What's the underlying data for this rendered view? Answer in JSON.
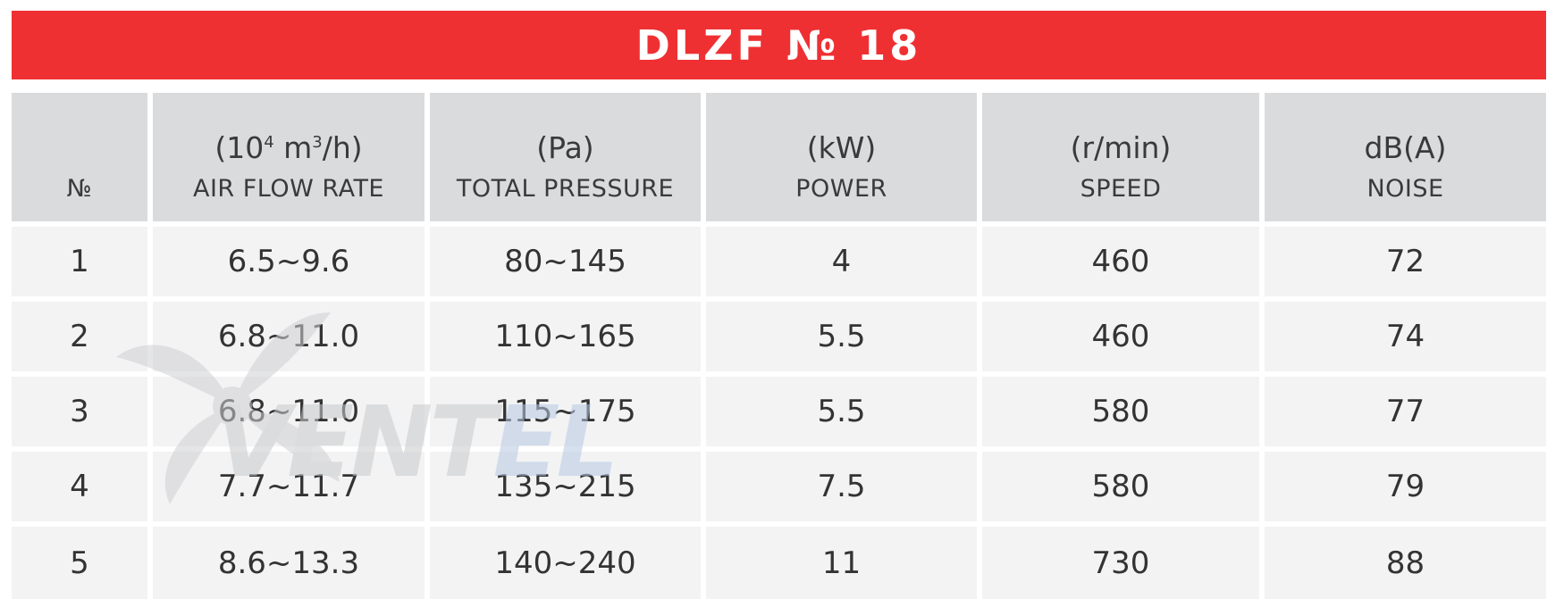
{
  "title": "DLZF № 18",
  "columns": [
    {
      "unit_base": "",
      "unit_sup": "",
      "unit_tail": "",
      "name": "№"
    },
    {
      "unit_base": "(10",
      "unit_sup": "4",
      "unit_mid": " m",
      "unit_sup2": "3",
      "unit_tail": "/h)",
      "name": "AIR FLOW RATE"
    },
    {
      "unit": "(Pa)",
      "name": "TOTAL PRESSURE"
    },
    {
      "unit": "(kW)",
      "name": "POWER"
    },
    {
      "unit": "(r/min)",
      "name": "SPEED"
    },
    {
      "unit": "dB(A)",
      "name": "NOISE"
    }
  ],
  "rows": [
    [
      "1",
      "6.5~9.6",
      "80~145",
      "4",
      "460",
      "72"
    ],
    [
      "2",
      "6.8~11.0",
      "110~165",
      "5.5",
      "460",
      "74"
    ],
    [
      "3",
      "6.8~11.0",
      "115~175",
      "5.5",
      "580",
      "77"
    ],
    [
      "4",
      "7.7~11.7",
      "135~215",
      "7.5",
      "580",
      "79"
    ],
    [
      "5",
      "8.6~13.3",
      "140~240",
      "11",
      "730",
      "88"
    ]
  ],
  "watermark": {
    "text_gray": "VENT",
    "text_blue": "EL"
  },
  "colors": {
    "title_bg": "#ef3033",
    "header_bg": "#dadbdd",
    "row_bg": "#f3f3f4"
  }
}
